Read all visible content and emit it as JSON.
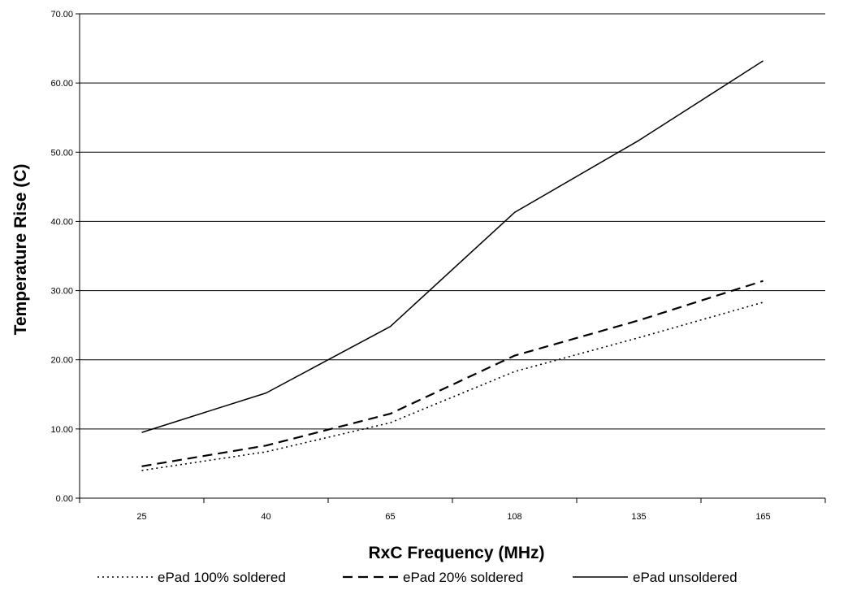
{
  "chart_data": {
    "type": "line",
    "title": "",
    "xlabel": "RxC Frequency (MHz)",
    "ylabel": "Temperature Rise (C)",
    "categories": [
      "25",
      "40",
      "65",
      "108",
      "135",
      "165"
    ],
    "y_ticks": [
      "0.00",
      "10.00",
      "20.00",
      "30.00",
      "40.00",
      "50.00",
      "60.00",
      "70.00"
    ],
    "ylim": [
      0,
      70
    ],
    "grid": "horizontal",
    "legend_position": "bottom",
    "series": [
      {
        "name": "ePad 100% soldered",
        "style": "dotted",
        "values": [
          4.0,
          6.7,
          10.9,
          18.3,
          23.2,
          28.3
        ]
      },
      {
        "name": "ePad 20% soldered",
        "style": "dashed",
        "values": [
          4.6,
          7.6,
          12.2,
          20.6,
          25.7,
          31.4
        ]
      },
      {
        "name": "ePad unsoldered",
        "style": "solid",
        "values": [
          9.5,
          15.2,
          24.8,
          41.3,
          51.7,
          63.2
        ]
      }
    ]
  }
}
